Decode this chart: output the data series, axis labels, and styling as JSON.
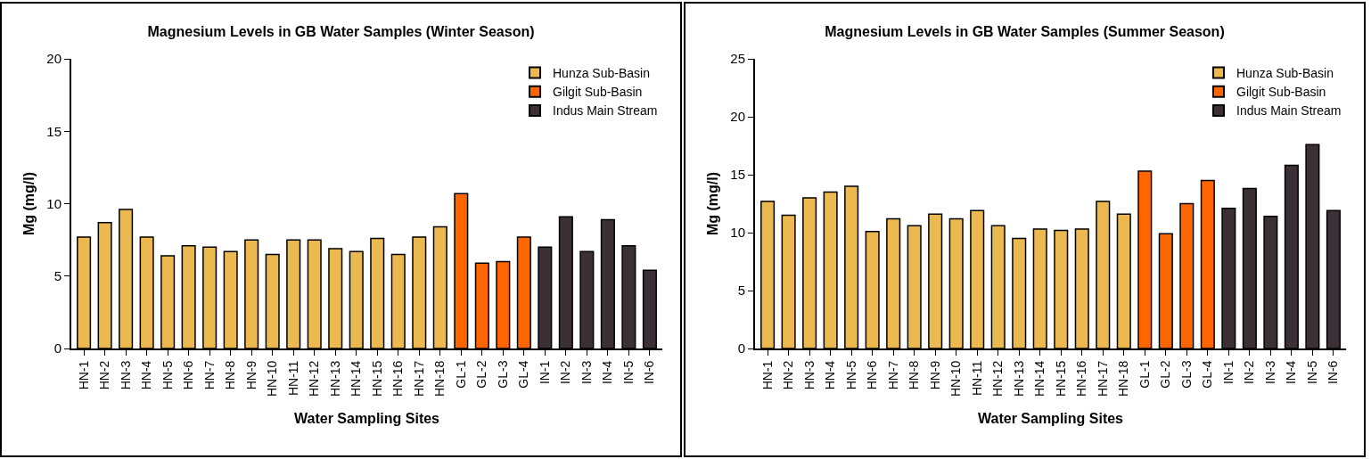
{
  "chart_data": [
    {
      "type": "bar",
      "title": "Magnesium Levels in GB Water Samples (Winter Season)",
      "xlabel": "Water Sampling Sites",
      "ylabel": "Mg (mg/l)",
      "categories": [
        "HN-1",
        "HN-2",
        "HN-3",
        "HN-4",
        "HN-5",
        "HN-6",
        "HN-7",
        "HN-8",
        "HN-9",
        "HN-10",
        "HN-11",
        "HN-12",
        "HN-13",
        "HN-14",
        "HN-15",
        "HN-16",
        "HN-17",
        "HN-18",
        "GL-1",
        "GL-2",
        "GL-3",
        "GL-4",
        "IN-1",
        "IN-2",
        "IN-3",
        "IN-4",
        "IN-5",
        "IN-6"
      ],
      "series": [
        {
          "name": "Hunza Sub-Basin",
          "color": "#ebb950",
          "values": [
            7.7,
            8.7,
            9.6,
            7.7,
            6.4,
            7.1,
            7.0,
            6.7,
            7.5,
            6.5,
            7.5,
            7.5,
            6.9,
            6.7,
            7.6,
            6.5,
            7.7,
            8.4,
            null,
            null,
            null,
            null,
            null,
            null,
            null,
            null,
            null,
            null
          ]
        },
        {
          "name": "Gilgit Sub-Basin",
          "color": "#ff6600",
          "values": [
            null,
            null,
            null,
            null,
            null,
            null,
            null,
            null,
            null,
            null,
            null,
            null,
            null,
            null,
            null,
            null,
            null,
            null,
            10.7,
            5.9,
            6.0,
            7.7,
            null,
            null,
            null,
            null,
            null,
            null
          ]
        },
        {
          "name": "Indus Main Stream",
          "color": "#3a3036",
          "values": [
            null,
            null,
            null,
            null,
            null,
            null,
            null,
            null,
            null,
            null,
            null,
            null,
            null,
            null,
            null,
            null,
            null,
            null,
            null,
            null,
            null,
            null,
            7.0,
            9.1,
            6.7,
            8.9,
            7.1,
            5.4
          ]
        }
      ],
      "ylim": [
        0,
        20
      ],
      "yticks": [
        0,
        5,
        10,
        15,
        20
      ],
      "grid": false,
      "legend": "top right"
    },
    {
      "type": "bar",
      "title": "Magnesium Levels in GB Water Samples (Summer Season)",
      "xlabel": "Water Sampling Sites",
      "ylabel": "Mg (mg/l)",
      "categories": [
        "HN-1",
        "HN-2",
        "HN-3",
        "HN-4",
        "HN-5",
        "HN-6",
        "HN-7",
        "HN-8",
        "HN-9",
        "HN-10",
        "HN-11",
        "HN-12",
        "HN-13",
        "HN-14",
        "HN-15",
        "HN-16",
        "HN-17",
        "HN-18",
        "GL-1",
        "GL-2",
        "GL-3",
        "GL-4",
        "IN-1",
        "IN-2",
        "IN-3",
        "IN-4",
        "IN-5",
        "IN-6"
      ],
      "series": [
        {
          "name": "Hunza Sub-Basin",
          "color": "#ebb950",
          "values": [
            12.7,
            11.5,
            13.0,
            13.5,
            14.0,
            10.1,
            11.2,
            10.6,
            11.6,
            11.2,
            11.9,
            10.6,
            9.5,
            10.3,
            10.2,
            10.3,
            12.7,
            11.6,
            null,
            null,
            null,
            null,
            null,
            null,
            null,
            null,
            null,
            null
          ]
        },
        {
          "name": "Gilgit Sub-Basin",
          "color": "#ff6600",
          "values": [
            null,
            null,
            null,
            null,
            null,
            null,
            null,
            null,
            null,
            null,
            null,
            null,
            null,
            null,
            null,
            null,
            null,
            null,
            15.3,
            9.9,
            12.5,
            14.5,
            null,
            null,
            null,
            null,
            null,
            null
          ]
        },
        {
          "name": "Indus Main Stream",
          "color": "#3a3036",
          "values": [
            null,
            null,
            null,
            null,
            null,
            null,
            null,
            null,
            null,
            null,
            null,
            null,
            null,
            null,
            null,
            null,
            null,
            null,
            null,
            null,
            null,
            null,
            12.1,
            13.8,
            11.4,
            15.8,
            17.6,
            11.9
          ]
        }
      ],
      "ylim": [
        0,
        25
      ],
      "yticks": [
        0,
        5,
        10,
        15,
        20,
        25
      ],
      "grid": false,
      "legend": "top right"
    }
  ]
}
